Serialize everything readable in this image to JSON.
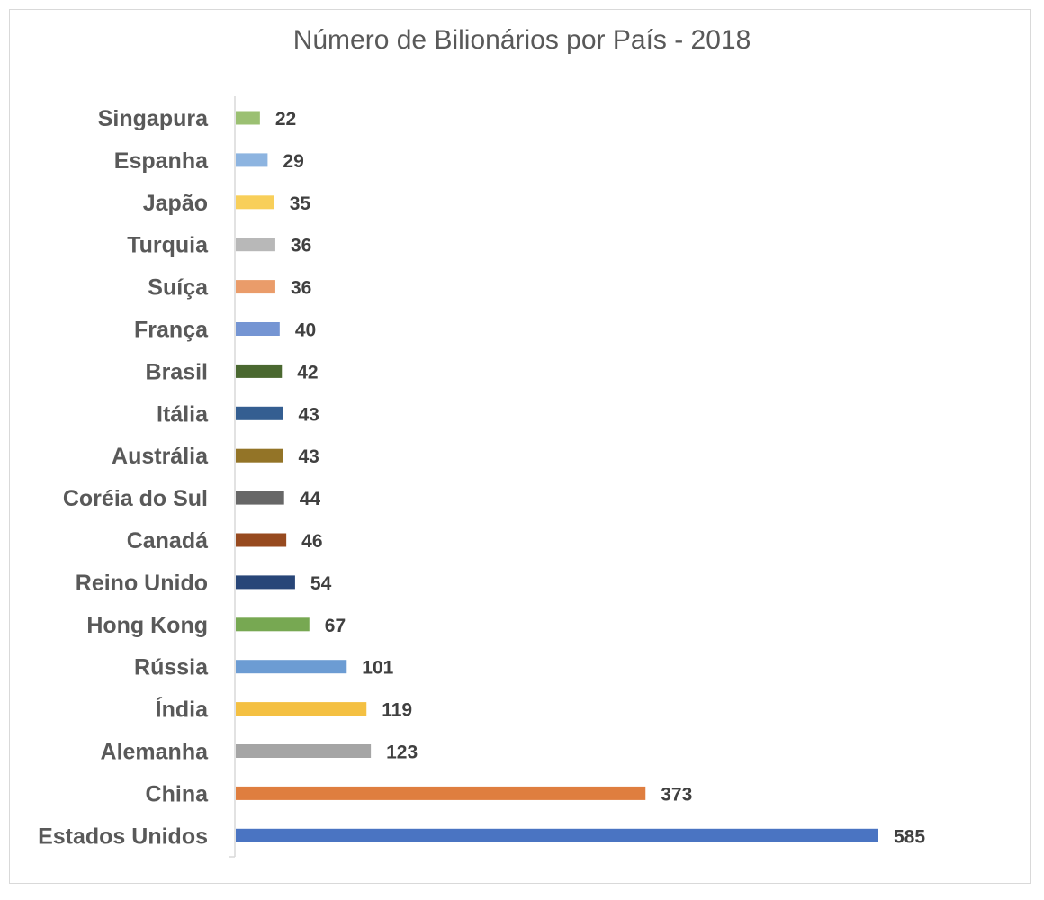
{
  "chart_data": {
    "type": "bar",
    "orientation": "horizontal",
    "title": "Número de Bilionários por País - 2018",
    "xlabel": "",
    "ylabel": "",
    "xlim": [
      0,
      585
    ],
    "grid": false,
    "legend": "none",
    "categories": [
      "Singapura",
      "Espanha",
      "Japão",
      "Turquia",
      "Suíça",
      "França",
      "Brasil",
      "Itália",
      "Austrália",
      "Coréia do Sul",
      "Canadá",
      "Reino Unido",
      "Hong Kong",
      "Rússia",
      "Índia",
      "Alemanha",
      "China",
      "Estados Unidos"
    ],
    "values": [
      22,
      29,
      35,
      36,
      36,
      40,
      42,
      43,
      43,
      44,
      46,
      54,
      67,
      101,
      119,
      123,
      373,
      585
    ],
    "colors": [
      "#9bc072",
      "#8db4e0",
      "#f8cf5a",
      "#b8b8b8",
      "#ea9c6a",
      "#7595d3",
      "#4a6830",
      "#345e91",
      "#937427",
      "#676767",
      "#974a1f",
      "#284678",
      "#77a852",
      "#6c9cd3",
      "#f4c042",
      "#a5a5a5",
      "#df7e3f",
      "#4a74c2"
    ]
  }
}
